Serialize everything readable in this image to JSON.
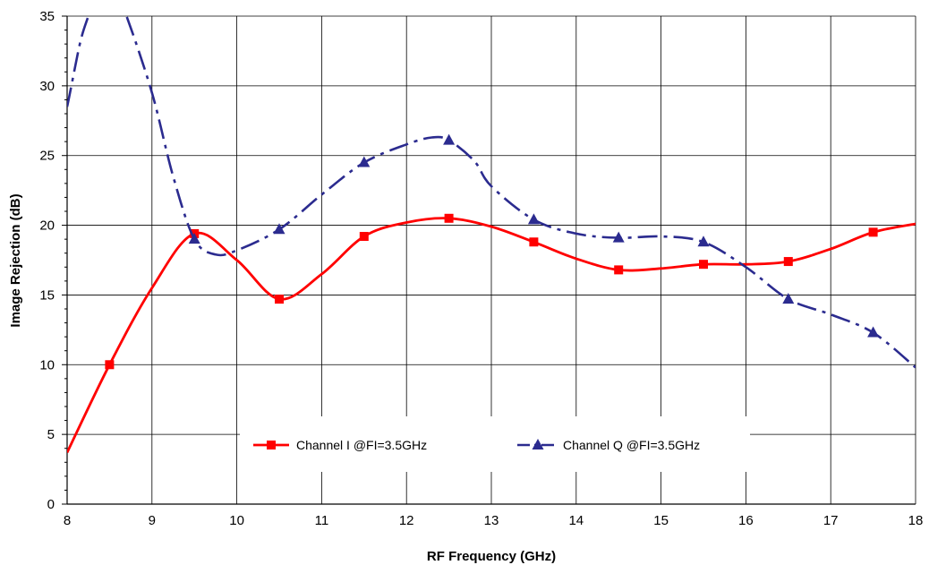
{
  "chart_data": {
    "type": "line",
    "xlabel": "RF Frequency (GHz)",
    "ylabel": "Image Rejection (dB)",
    "xlim": [
      8,
      18
    ],
    "ylim": [
      0,
      35
    ],
    "x_ticks": [
      "8",
      "9",
      "10",
      "11",
      "12",
      "13",
      "14",
      "15",
      "16",
      "17",
      "18"
    ],
    "y_ticks": [
      "0",
      "5",
      "10",
      "15",
      "20",
      "25",
      "30",
      "35"
    ],
    "grid": true,
    "legend_position": "bottom-center",
    "series": [
      {
        "name": "Channel I  @FI=3.5GHz",
        "color": "#ff0000",
        "style": "solid",
        "marker": "square",
        "markers": [
          [
            8.5,
            10.0
          ],
          [
            9.5,
            19.4
          ],
          [
            10.5,
            14.7
          ],
          [
            11.5,
            19.2
          ],
          [
            12.5,
            20.5
          ],
          [
            13.5,
            18.8
          ],
          [
            14.5,
            16.8
          ],
          [
            15.5,
            17.2
          ],
          [
            16.5,
            17.4
          ],
          [
            17.5,
            19.5
          ]
        ],
        "curve": [
          [
            8.0,
            3.7
          ],
          [
            8.5,
            10.0
          ],
          [
            9.0,
            15.5
          ],
          [
            9.5,
            19.4
          ],
          [
            10.0,
            17.5
          ],
          [
            10.5,
            14.7
          ],
          [
            11.0,
            16.5
          ],
          [
            11.5,
            19.2
          ],
          [
            12.0,
            20.2
          ],
          [
            12.5,
            20.5
          ],
          [
            13.0,
            19.9
          ],
          [
            13.5,
            18.8
          ],
          [
            14.0,
            17.6
          ],
          [
            14.5,
            16.8
          ],
          [
            15.0,
            16.9
          ],
          [
            15.5,
            17.2
          ],
          [
            16.0,
            17.2
          ],
          [
            16.5,
            17.4
          ],
          [
            17.0,
            18.3
          ],
          [
            17.5,
            19.5
          ],
          [
            18.0,
            20.1
          ]
        ]
      },
      {
        "name": "Channel Q  @FI=3.5GHz",
        "color": "#2b2b8f",
        "style": "dashdot",
        "marker": "triangle",
        "markers": [
          [
            9.5,
            19.0
          ],
          [
            10.5,
            19.7
          ],
          [
            11.5,
            24.5
          ],
          [
            12.5,
            26.1
          ],
          [
            13.5,
            20.4
          ],
          [
            14.5,
            19.1
          ],
          [
            15.5,
            18.8
          ],
          [
            16.5,
            14.7
          ],
          [
            17.5,
            12.3
          ]
        ],
        "curve": [
          [
            7.9,
            26.0
          ],
          [
            8.0,
            28.5
          ],
          [
            8.15,
            33.0
          ],
          [
            8.25,
            35.0
          ],
          [
            8.4,
            37.5
          ],
          [
            8.55,
            37.0
          ],
          [
            8.7,
            35.0
          ],
          [
            9.0,
            29.5
          ],
          [
            9.25,
            23.5
          ],
          [
            9.5,
            19.0
          ],
          [
            9.75,
            17.9
          ],
          [
            10.0,
            18.2
          ],
          [
            10.5,
            19.7
          ],
          [
            11.0,
            22.2
          ],
          [
            11.5,
            24.5
          ],
          [
            12.0,
            25.8
          ],
          [
            12.3,
            26.3
          ],
          [
            12.5,
            26.1
          ],
          [
            12.8,
            24.6
          ],
          [
            13.0,
            22.8
          ],
          [
            13.5,
            20.4
          ],
          [
            14.0,
            19.4
          ],
          [
            14.5,
            19.1
          ],
          [
            15.0,
            19.2
          ],
          [
            15.5,
            18.8
          ],
          [
            16.0,
            17.0
          ],
          [
            16.5,
            14.7
          ],
          [
            17.0,
            13.6
          ],
          [
            17.5,
            12.3
          ],
          [
            18.0,
            9.8
          ]
        ]
      }
    ]
  }
}
